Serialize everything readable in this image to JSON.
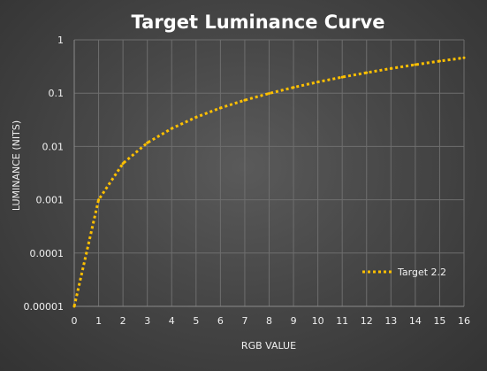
{
  "chart_data": {
    "type": "line",
    "title": "Target Luminance Curve",
    "xlabel": "RGB VALUE",
    "ylabel": "LUMINANCE (NITS)",
    "xlim": [
      0,
      16
    ],
    "ylim": [
      1e-05,
      1
    ],
    "yscale": "log",
    "grid": true,
    "legend_position": "bottom-right",
    "x_ticks": [
      "0",
      "1",
      "2",
      "3",
      "4",
      "5",
      "6",
      "7",
      "8",
      "9",
      "10",
      "11",
      "12",
      "13",
      "14",
      "15",
      "16"
    ],
    "y_ticks": [
      "1",
      "0.1",
      "0.01",
      "0.001",
      "0.0001",
      "0.00001"
    ],
    "x": [
      0,
      1,
      2,
      3,
      4,
      5,
      6,
      7,
      8,
      9,
      10,
      11,
      12,
      13,
      14,
      15,
      16
    ],
    "series": [
      {
        "name": "Target 2.2",
        "color": "#ffc000",
        "values": [
          1e-05,
          0.001,
          0.0048,
          0.0117,
          0.0217,
          0.0353,
          0.0527,
          0.0738,
          0.0988,
          0.128,
          0.162,
          0.2,
          0.242,
          0.29,
          0.342,
          0.399,
          0.46
        ]
      }
    ]
  }
}
